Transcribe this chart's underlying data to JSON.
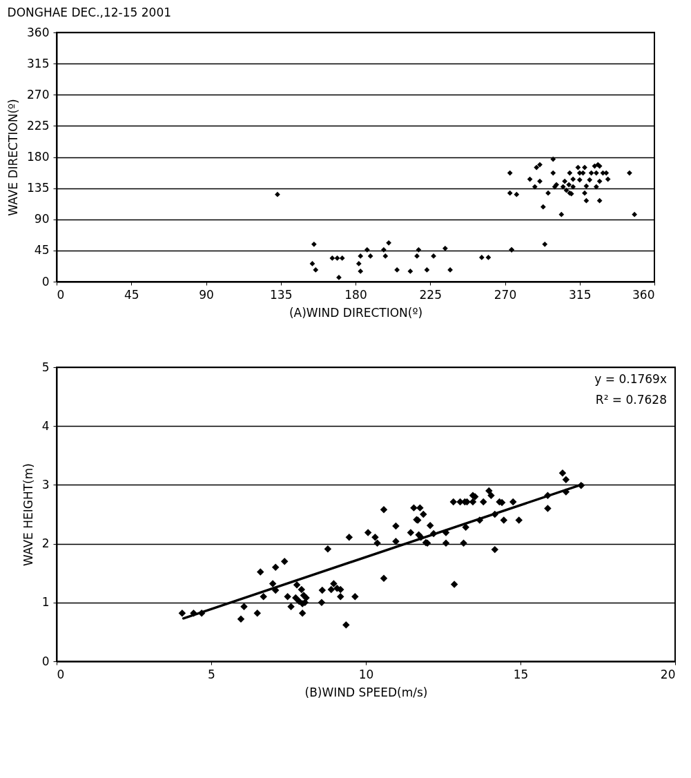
{
  "chart_data": [
    {
      "type": "scatter",
      "title": "DONGHAE DEC.,12-15 2001",
      "xlabel": "(A)WIND DIRECTION(º)",
      "ylabel": "WAVE DIRECTION(º)",
      "xlim": [
        0,
        360
      ],
      "ylim": [
        0,
        360
      ],
      "xticks": [
        0,
        45,
        90,
        135,
        180,
        225,
        270,
        315,
        360
      ],
      "yticks": [
        0,
        45,
        90,
        135,
        180,
        225,
        270,
        315,
        360
      ],
      "grid": "y",
      "marker": "diamond",
      "series": [
        {
          "color": "#000000",
          "x": [
            133,
            155,
            154,
            156,
            166,
            169,
            172,
            170,
            183,
            182,
            183,
            187,
            189,
            197,
            198,
            200,
            205,
            213,
            217,
            218,
            223,
            227,
            234,
            237,
            256,
            260,
            274,
            273,
            273,
            277,
            274,
            285,
            288,
            289,
            291,
            291,
            293,
            294,
            296,
            299,
            299,
            300,
            301,
            304,
            305,
            306,
            307,
            308.5,
            309,
            309,
            310,
            311,
            311,
            314,
            315,
            315,
            317,
            318,
            318,
            319,
            319,
            321,
            322,
            324,
            325,
            326,
            327,
            325,
            327,
            327,
            329,
            331,
            332,
            345,
            348
          ],
          "values": [
            126,
            54,
            26,
            17,
            34,
            34,
            34,
            6,
            37,
            26,
            15,
            46,
            37,
            46,
            37,
            56,
            17,
            15,
            37,
            46,
            17,
            37,
            48,
            17,
            35,
            35,
            46,
            157,
            128,
            126,
            46,
            148,
            137,
            165,
            169,
            145,
            108,
            54,
            128,
            177,
            157,
            137,
            140,
            97,
            137,
            145,
            132,
            140,
            157,
            128,
            127,
            148,
            137,
            165,
            157,
            147,
            157,
            165,
            128,
            138,
            117,
            147,
            157,
            167,
            157,
            169,
            167,
            137,
            117,
            145,
            157,
            157,
            148,
            157,
            97
          ]
        }
      ]
    },
    {
      "type": "scatter",
      "xlabel": "(B)WIND SPEED(m/s)",
      "ylabel": "WAVE HEIGHT(m)",
      "xlim": [
        0,
        20
      ],
      "ylim": [
        0,
        5
      ],
      "xticks": [
        0,
        5,
        10,
        15,
        20
      ],
      "yticks": [
        0,
        1,
        2,
        3,
        4,
        5
      ],
      "grid": "y",
      "marker": "diamond",
      "annotations": [
        "y = 0.1769x",
        "R² = 0.7628"
      ],
      "series": [
        {
          "color": "#000000",
          "x": [
            4.06,
            4.43,
            4.69,
            5.96,
            6.06,
            6.49,
            6.59,
            6.69,
            6.99,
            7.08,
            7.08,
            7.37,
            7.47,
            7.58,
            7.77,
            7.73,
            7.84,
            7.92,
            7.99,
            8.07,
            7.95,
            8.03,
            7.95,
            8.59,
            8.57,
            8.77,
            8.96,
            8.88,
            9.07,
            9.18,
            9.18,
            9.36,
            9.46,
            9.65,
            10.07,
            10.3,
            10.37,
            10.58,
            10.58,
            10.97,
            10.97,
            11.45,
            11.71,
            11.64,
            11.94,
            11.55,
            11.75,
            11.86,
            11.68,
            11.78,
            12.08,
            12.19,
            11.99,
            12.59,
            12.59,
            12.83,
            13.05,
            13.2,
            13.27,
            13.46,
            13.46,
            13.53,
            13.16,
            13.23,
            13.68,
            13.8,
            13.98,
            14.05,
            14.17,
            14.32,
            14.4,
            14.46,
            14.17,
            14.76,
            14.95,
            15.88,
            15.88,
            16.36,
            16.47,
            16.47,
            16.96,
            12.86
          ],
          "values": [
            0.82,
            0.82,
            0.82,
            0.72,
            0.93,
            0.82,
            1.52,
            1.1,
            1.32,
            1.21,
            1.6,
            1.7,
            1.1,
            0.93,
            1.3,
            1.08,
            1.02,
            1.22,
            1.12,
            1.08,
            0.98,
            1.0,
            0.82,
            1.21,
            1.0,
            1.91,
            1.32,
            1.22,
            1.24,
            1.22,
            1.1,
            0.62,
            2.11,
            1.1,
            2.19,
            2.11,
            2.01,
            1.41,
            2.58,
            2.3,
            2.04,
            2.19,
            2.15,
            2.41,
            2.02,
            2.61,
            2.61,
            2.5,
            2.4,
            2.11,
            2.31,
            2.17,
            2.01,
            2.19,
            2.01,
            2.71,
            2.71,
            2.71,
            2.71,
            2.71,
            2.82,
            2.8,
            2.01,
            2.28,
            2.4,
            2.71,
            2.9,
            2.82,
            2.5,
            2.71,
            2.7,
            2.4,
            1.9,
            2.71,
            2.4,
            2.82,
            2.6,
            3.2,
            3.09,
            2.88,
            2.99,
            1.31
          ]
        },
        {
          "type": "line",
          "marker": "none",
          "color": "#000000",
          "x": [
            4.1,
            17
          ],
          "values": [
            0.73,
            3.01
          ]
        }
      ]
    }
  ]
}
